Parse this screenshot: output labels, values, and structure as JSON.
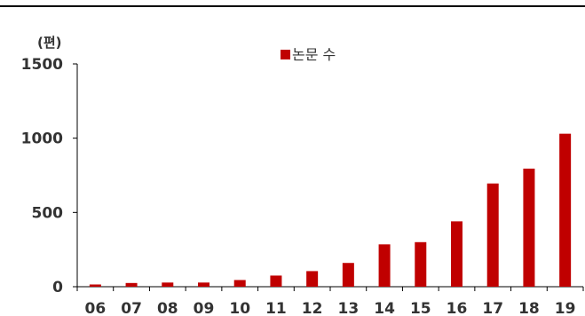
{
  "chart_data": {
    "type": "bar",
    "unit_label": "(편)",
    "categories": [
      "06",
      "07",
      "08",
      "09",
      "10",
      "11",
      "12",
      "13",
      "14",
      "15",
      "16",
      "17",
      "18",
      "19"
    ],
    "series": [
      {
        "name": "논문 수",
        "color": "#c00000",
        "values": [
          15,
          25,
          28,
          28,
          45,
          75,
          105,
          160,
          285,
          300,
          440,
          695,
          795,
          1030
        ]
      }
    ],
    "yticks": [
      0,
      500,
      1000,
      1500
    ],
    "ylim": [
      0,
      1500
    ],
    "grid": false,
    "legend_position": "top-center"
  }
}
